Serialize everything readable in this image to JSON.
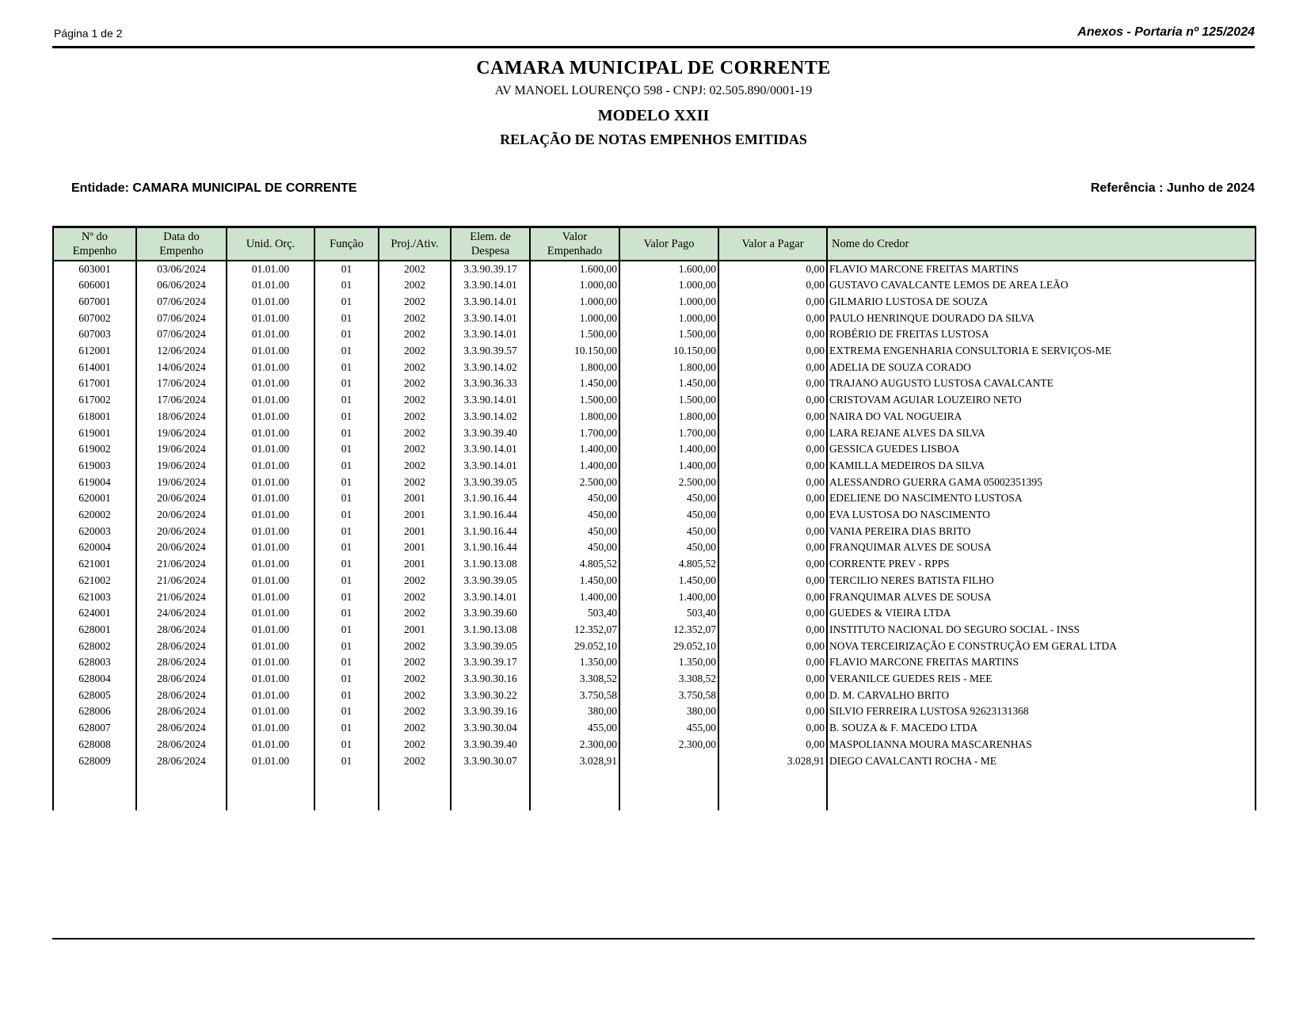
{
  "page": {
    "page_indicator": "Página 1 de 2",
    "annex_label": "Anexos - Portaria nº 125/2024"
  },
  "header": {
    "org_name": "CAMARA MUNICIPAL DE CORRENTE",
    "address": "AV MANOEL LOURENÇO 598  -  CNPJ: 02.505.890/0001-19",
    "model": "MODELO XXII",
    "report_title": "RELAÇÃO DE NOTAS EMPENHOS EMITIDAS",
    "entity_label": "Entidade: CAMARA MUNICIPAL DE CORRENTE",
    "reference_label": "Referência : Junho de 2024"
  },
  "table": {
    "header_bg": "#cee3cd",
    "columns": [
      "Nº do\nEmpenho",
      "Data do\nEmpenho",
      "Unid. Orç.",
      "Função",
      "Proj./Ativ.",
      "Elem. de\nDespesa",
      "Valor\nEmpenhado",
      "Valor Pago",
      "Valor a Pagar",
      "Nome do Credor"
    ],
    "rows": [
      [
        "603001",
        "03/06/2024",
        "01.01.00",
        "01",
        "2002",
        "3.3.90.39.17",
        "1.600,00",
        "1.600,00",
        "0,00",
        "FLAVIO MARCONE FREITAS MARTINS"
      ],
      [
        "606001",
        "06/06/2024",
        "01.01.00",
        "01",
        "2002",
        "3.3.90.14.01",
        "1.000,00",
        "1.000,00",
        "0,00",
        "GUSTAVO CAVALCANTE LEMOS DE AREA LEÃO"
      ],
      [
        "607001",
        "07/06/2024",
        "01.01.00",
        "01",
        "2002",
        "3.3.90.14.01",
        "1.000,00",
        "1.000,00",
        "0,00",
        "GILMARIO LUSTOSA DE SOUZA"
      ],
      [
        "607002",
        "07/06/2024",
        "01.01.00",
        "01",
        "2002",
        "3.3.90.14.01",
        "1.000,00",
        "1.000,00",
        "0,00",
        "PAULO HENRINQUE DOURADO DA SILVA"
      ],
      [
        "607003",
        "07/06/2024",
        "01.01.00",
        "01",
        "2002",
        "3.3.90.14.01",
        "1.500,00",
        "1.500,00",
        "0,00",
        "ROBÉRIO DE FREITAS LUSTOSA"
      ],
      [
        "612001",
        "12/06/2024",
        "01.01.00",
        "01",
        "2002",
        "3.3.90.39.57",
        "10.150,00",
        "10.150,00",
        "0,00",
        "EXTREMA ENGENHARIA CONSULTORIA E SERVIÇOS-ME"
      ],
      [
        "614001",
        "14/06/2024",
        "01.01.00",
        "01",
        "2002",
        "3.3.90.14.02",
        "1.800,00",
        "1.800,00",
        "0,00",
        "ADELIA DE SOUZA CORADO"
      ],
      [
        "617001",
        "17/06/2024",
        "01.01.00",
        "01",
        "2002",
        "3.3.90.36.33",
        "1.450,00",
        "1.450,00",
        "0,00",
        "TRAJANO AUGUSTO LUSTOSA CAVALCANTE"
      ],
      [
        "617002",
        "17/06/2024",
        "01.01.00",
        "01",
        "2002",
        "3.3.90.14.01",
        "1.500,00",
        "1.500,00",
        "0,00",
        "CRISTOVAM AGUIAR LOUZEIRO NETO"
      ],
      [
        "618001",
        "18/06/2024",
        "01.01.00",
        "01",
        "2002",
        "3.3.90.14.02",
        "1.800,00",
        "1.800,00",
        "0,00",
        "NAIRA DO VAL NOGUEIRA"
      ],
      [
        "619001",
        "19/06/2024",
        "01.01.00",
        "01",
        "2002",
        "3.3.90.39.40",
        "1.700,00",
        "1.700,00",
        "0,00",
        "LARA REJANE ALVES DA SILVA"
      ],
      [
        "619002",
        "19/06/2024",
        "01.01.00",
        "01",
        "2002",
        "3.3.90.14.01",
        "1.400,00",
        "1.400,00",
        "0,00",
        "GESSICA GUEDES LISBOA"
      ],
      [
        "619003",
        "19/06/2024",
        "01.01.00",
        "01",
        "2002",
        "3.3.90.14.01",
        "1.400,00",
        "1.400,00",
        "0,00",
        "KAMILLA MEDEIROS DA SILVA"
      ],
      [
        "619004",
        "19/06/2024",
        "01.01.00",
        "01",
        "2002",
        "3.3.90.39.05",
        "2.500,00",
        "2.500,00",
        "0,00",
        "ALESSANDRO GUERRA GAMA 05002351395"
      ],
      [
        "620001",
        "20/06/2024",
        "01.01.00",
        "01",
        "2001",
        "3.1.90.16.44",
        "450,00",
        "450,00",
        "0,00",
        "EDELIENE DO NASCIMENTO LUSTOSA"
      ],
      [
        "620002",
        "20/06/2024",
        "01.01.00",
        "01",
        "2001",
        "3.1.90.16.44",
        "450,00",
        "450,00",
        "0,00",
        "EVA LUSTOSA DO NASCIMENTO"
      ],
      [
        "620003",
        "20/06/2024",
        "01.01.00",
        "01",
        "2001",
        "3.1.90.16.44",
        "450,00",
        "450,00",
        "0,00",
        "VANIA PEREIRA DIAS BRITO"
      ],
      [
        "620004",
        "20/06/2024",
        "01.01.00",
        "01",
        "2001",
        "3.1.90.16.44",
        "450,00",
        "450,00",
        "0,00",
        "FRANQUIMAR ALVES DE SOUSA"
      ],
      [
        "621001",
        "21/06/2024",
        "01.01.00",
        "01",
        "2001",
        "3.1.90.13.08",
        "4.805,52",
        "4.805,52",
        "0,00",
        "CORRENTE PREV - RPPS"
      ],
      [
        "621002",
        "21/06/2024",
        "01.01.00",
        "01",
        "2002",
        "3.3.90.39.05",
        "1.450,00",
        "1.450,00",
        "0,00",
        "TERCILIO NERES BATISTA FILHO"
      ],
      [
        "621003",
        "21/06/2024",
        "01.01.00",
        "01",
        "2002",
        "3.3.90.14.01",
        "1.400,00",
        "1.400,00",
        "0,00",
        "FRANQUIMAR ALVES DE SOUSA"
      ],
      [
        "624001",
        "24/06/2024",
        "01.01.00",
        "01",
        "2002",
        "3.3.90.39.60",
        "503,40",
        "503,40",
        "0,00",
        "GUEDES & VIEIRA LTDA"
      ],
      [
        "628001",
        "28/06/2024",
        "01.01.00",
        "01",
        "2001",
        "3.1.90.13.08",
        "12.352,07",
        "12.352,07",
        "0,00",
        "INSTITUTO NACIONAL DO SEGURO SOCIAL - INSS"
      ],
      [
        "628002",
        "28/06/2024",
        "01.01.00",
        "01",
        "2002",
        "3.3.90.39.05",
        "29.052,10",
        "29.052,10",
        "0,00",
        "NOVA TERCEIRIZAÇÃO E CONSTRUÇÃO EM GERAL LTDA"
      ],
      [
        "628003",
        "28/06/2024",
        "01.01.00",
        "01",
        "2002",
        "3.3.90.39.17",
        "1.350,00",
        "1.350,00",
        "0,00",
        "FLAVIO MARCONE FREITAS MARTINS"
      ],
      [
        "628004",
        "28/06/2024",
        "01.01.00",
        "01",
        "2002",
        "3.3.90.30.16",
        "3.308,52",
        "3.308,52",
        "0,00",
        "VERANILCE GUEDES REIS - MEE"
      ],
      [
        "628005",
        "28/06/2024",
        "01.01.00",
        "01",
        "2002",
        "3.3.90.30.22",
        "3.750,58",
        "3.750,58",
        "0,00",
        "D. M. CARVALHO BRITO"
      ],
      [
        "628006",
        "28/06/2024",
        "01.01.00",
        "01",
        "2002",
        "3.3.90.39.16",
        "380,00",
        "380,00",
        "0,00",
        "SILVIO FERREIRA LUSTOSA 92623131368"
      ],
      [
        "628007",
        "28/06/2024",
        "01.01.00",
        "01",
        "2002",
        "3.3.90.30.04",
        "455,00",
        "455,00",
        "0,00",
        "B. SOUZA & F. MACEDO LTDA"
      ],
      [
        "628008",
        "28/06/2024",
        "01.01.00",
        "01",
        "2002",
        "3.3.90.39.40",
        "2.300,00",
        "2.300,00",
        "0,00",
        "MASPOLIANNA MOURA MASCARENHAS"
      ],
      [
        "628009",
        "28/06/2024",
        "01.01.00",
        "01",
        "2002",
        "3.3.90.30.07",
        "3.028,91",
        "",
        "3.028,91",
        "DIEGO CAVALCANTI ROCHA - ME"
      ]
    ]
  }
}
